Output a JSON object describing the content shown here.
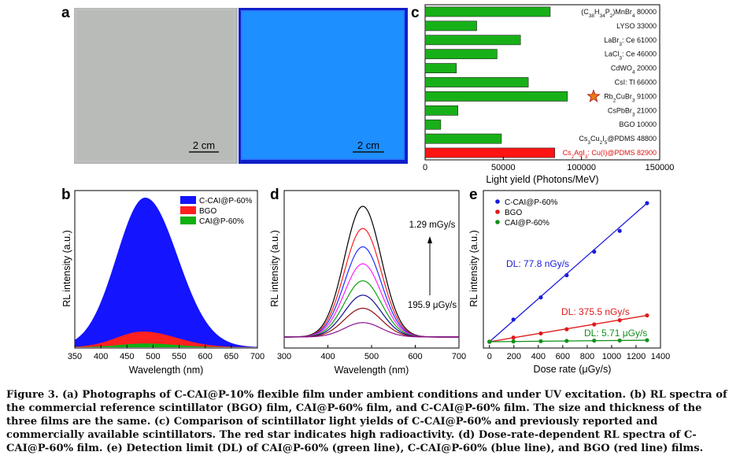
{
  "panels": {
    "a": {
      "letter": "a",
      "scale_left": "2 cm",
      "scale_right": "2 cm",
      "colors": {
        "ambient": "#b4b6b4",
        "uv": "#1e8fff",
        "uv_edge": "#0f1fc8"
      }
    },
    "b": {
      "letter": "b"
    },
    "c": {
      "letter": "c"
    },
    "d": {
      "letter": "d",
      "arrow_top": "1.29 mGy/s",
      "arrow_bottom": "195.9 μGy/s"
    },
    "e": {
      "letter": "e",
      "dl_blue": "DL: 77.8 nGy/s",
      "dl_red": "DL: 375.5 nGy/s",
      "dl_green": "DL: 5.71 μGy/s"
    }
  },
  "chart_data": [
    {
      "panel": "b",
      "type": "area",
      "xlabel": "Wavelength (nm)",
      "ylabel": "RL intensity (a.u.)",
      "xlim": [
        350,
        700
      ],
      "xticks": [
        "350",
        "400",
        "450",
        "500",
        "550",
        "600",
        "650",
        "700"
      ],
      "series": [
        {
          "name": "C-CAI@P-60%",
          "color": "#1414ff",
          "peak": 485,
          "height": 1.0,
          "sigma_l": 55,
          "sigma_r": 62
        },
        {
          "name": "BGO",
          "color": "#ff2020",
          "peak": 480,
          "height": 0.105,
          "sigma_l": 50,
          "sigma_r": 65
        },
        {
          "name": "CAI@P-60%",
          "color": "#10b010",
          "peak": 485,
          "height": 0.025,
          "sigma_l": 50,
          "sigma_r": 60
        }
      ]
    },
    {
      "panel": "c",
      "type": "bar",
      "xlabel": "Light yield (Photons/MeV)",
      "xlim": [
        0,
        150000
      ],
      "xticks": [
        "0",
        "50000",
        "100000",
        "150000"
      ],
      "categories": [
        {
          "pre": "(C",
          "subs": [
            [
              "38",
              true
            ],
            [
              "H",
              false
            ],
            [
              "34",
              true
            ],
            [
              "P",
              false
            ],
            [
              "2",
              true
            ],
            [
              ")MnBr",
              false
            ],
            [
              "4",
              true
            ]
          ],
          "post": " 80000",
          "value": 80000,
          "red": false
        },
        {
          "pre": "LYSO 33000",
          "subs": [],
          "post": "",
          "value": 33000,
          "red": false
        },
        {
          "pre": "LaBr",
          "subs": [
            [
              "3",
              true
            ]
          ],
          "post": ": Ce 61000",
          "value": 61000,
          "red": false
        },
        {
          "pre": "LaCl",
          "subs": [
            [
              "3",
              true
            ]
          ],
          "post": ": Ce 46000",
          "value": 46000,
          "red": false
        },
        {
          "pre": "CdWO",
          "subs": [
            [
              "4",
              true
            ]
          ],
          "post": " 20000",
          "value": 20000,
          "red": false
        },
        {
          "pre": "CsI: Tl 66000",
          "subs": [],
          "post": "",
          "value": 66000,
          "red": false
        },
        {
          "pre": "Rb",
          "subs": [
            [
              "2",
              true
            ],
            [
              "CuBr",
              false
            ],
            [
              "3",
              true
            ]
          ],
          "post": " 91000",
          "value": 91000,
          "red": false
        },
        {
          "pre": "CsPbBr",
          "subs": [
            [
              "3",
              true
            ]
          ],
          "post": " 21000",
          "value": 21000,
          "red": false
        },
        {
          "pre": "BGO 10000",
          "subs": [],
          "post": "",
          "value": 10000,
          "red": false
        },
        {
          "pre": "Cs",
          "subs": [
            [
              "3",
              true
            ],
            [
              "Cu",
              false
            ],
            [
              "2",
              true
            ],
            [
              "I",
              false
            ],
            [
              "5",
              true
            ]
          ],
          "post": "@PDMS 48800",
          "value": 48800,
          "red": false
        },
        {
          "pre": "Cs",
          "subs": [
            [
              "2",
              true
            ],
            [
              "AgI",
              false
            ],
            [
              "3",
              true
            ]
          ],
          "post": ": Cu(I)@PDMS 82900",
          "value": 82900,
          "red": true
        }
      ]
    },
    {
      "panel": "d",
      "type": "line",
      "xlabel": "Wavelength (nm)",
      "ylabel": "RL intensity (a.u.)",
      "xlim": [
        300,
        700
      ],
      "xticks": [
        "300",
        "400",
        "500",
        "600",
        "700"
      ],
      "series": [
        {
          "color": "#000000",
          "height": 1.0
        },
        {
          "color": "#ff2020",
          "height": 0.83
        },
        {
          "color": "#2030ff",
          "height": 0.69
        },
        {
          "color": "#ff20ff",
          "height": 0.56
        },
        {
          "color": "#10a010",
          "height": 0.43
        },
        {
          "color": "#101090",
          "height": 0.32
        },
        {
          "color": "#901010",
          "height": 0.22
        },
        {
          "color": "#901090",
          "height": 0.11
        }
      ],
      "peak": 480,
      "sigma": 42
    },
    {
      "panel": "e",
      "type": "scatter",
      "xlabel": "Dose rate (μGy/s)",
      "ylabel": "RL intensity (a.u.)",
      "xlim": [
        -50,
        1400
      ],
      "xticks": [
        "0",
        "200",
        "400",
        "600",
        "800",
        "1000",
        "1200",
        "1400"
      ],
      "x": [
        0,
        196,
        420,
        632,
        857,
        1066,
        1290
      ],
      "series": [
        {
          "name": "C-CAI@P-60%",
          "color": "#1a1adc",
          "y": [
            0,
            0.16,
            0.32,
            0.48,
            0.65,
            0.8,
            1.0
          ]
        },
        {
          "name": "BGO",
          "color": "#e01818",
          "y": [
            0,
            0.03,
            0.06,
            0.09,
            0.125,
            0.155,
            0.19
          ]
        },
        {
          "name": "CAI@P-60%",
          "color": "#10901a",
          "y": [
            0,
            0.002,
            0.004,
            0.006,
            0.008,
            0.009,
            0.011
          ]
        }
      ]
    }
  ],
  "caption": {
    "prefix": "Figure 3.",
    "text": " (a) Photographs of C-CAI@P-10% flexible film under ambient conditions and under UV excitation. (b) RL spectra of the commercial reference scintillator (BGO) film, CAI@P-60% film, and C-CAI@P-60% film. The size and thickness of the three films are the same. (c) Comparison of scintillator light yields of C-CAI@P-60% and previously reported and commercially available scintillators. The red star indicates high radioactivity. (d) Dose-rate-dependent RL spectra of C-CAI@P-60% film. (e) Detection limit (DL) of CAI@P-60% (green line), C-CAI@P-60% (blue line), and BGO (red line) films."
  }
}
